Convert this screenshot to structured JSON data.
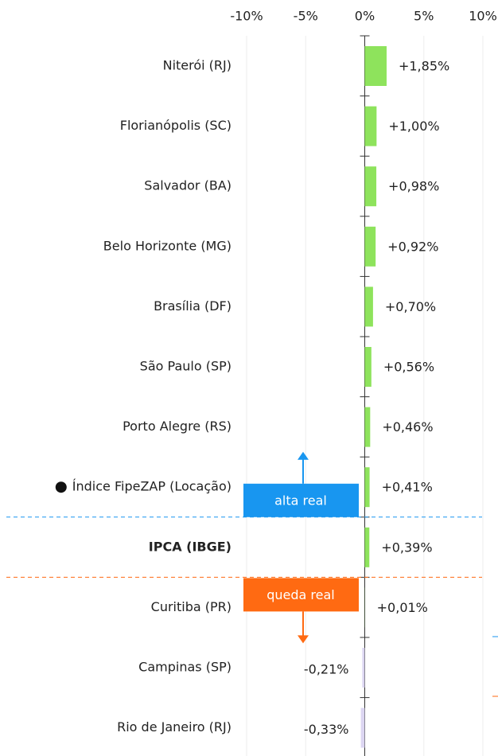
{
  "chart_data": {
    "type": "hbar",
    "categories": [
      "Niterói (RJ)",
      "Florianópolis (SC)",
      "Salvador (BA)",
      "Belo Horizonte (MG)",
      "Brasília (DF)",
      "São Paulo (SP)",
      "Porto Alegre (RS)",
      "Índice FipeZAP (Locação)",
      "IPCA (IBGE)",
      "Curitiba (PR)",
      "Campinas (SP)",
      "Rio de Janeiro (RJ)"
    ],
    "values": [
      1.85,
      1.0,
      0.98,
      0.92,
      0.7,
      0.56,
      0.46,
      0.41,
      0.39,
      0.01,
      -0.21,
      -0.33
    ],
    "value_labels": [
      "+1,85%",
      "+1,00%",
      "+0,98%",
      "+0,92%",
      "+0,70%",
      "+0,56%",
      "+0,46%",
      "+0,41%",
      "+0,39%",
      "+0,01%",
      "-0,21%",
      "-0,33%"
    ],
    "color": "#8ee35c",
    "negative_color": "#dcd6f2",
    "xlim": [
      -10,
      10
    ],
    "xticks": [
      {
        "value": -10,
        "label": "-10%"
      },
      {
        "value": -5,
        "label": "-5%"
      },
      {
        "value": 0,
        "label": "0%"
      },
      {
        "value": 5,
        "label": "5%"
      },
      {
        "value": 10,
        "label": "10%"
      }
    ],
    "grid": true,
    "highlight_category": 8,
    "marker_category": 7,
    "annotations": [
      {
        "text": "alta real",
        "color": "#1896f0",
        "direction": "up"
      },
      {
        "text": "queda real",
        "color": "#ff6a12",
        "direction": "down"
      }
    ]
  }
}
